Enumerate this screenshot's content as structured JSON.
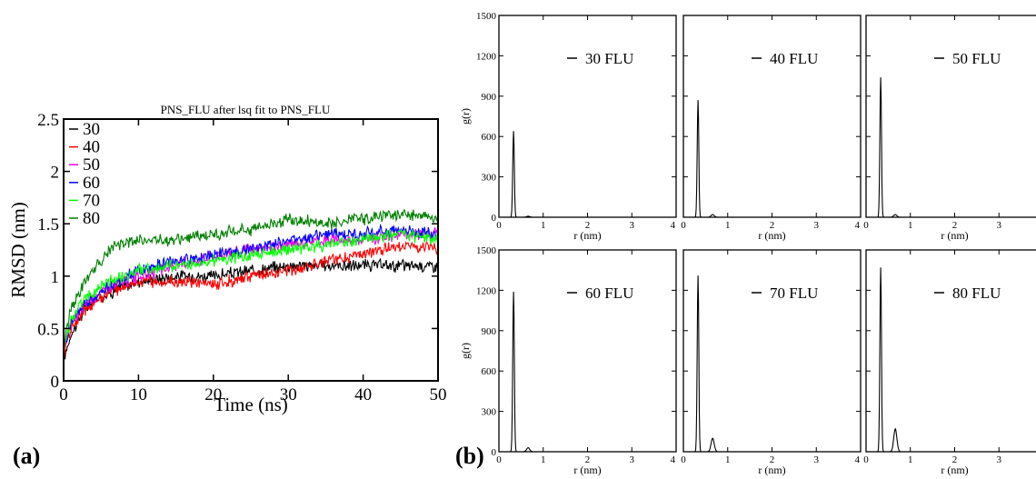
{
  "panel_labels": {
    "a": "(a)",
    "b": "(b)"
  },
  "colors": {
    "axis": "#000000",
    "frame": "#000000",
    "background": "#ffffff"
  },
  "chart_data": [
    {
      "type": "line",
      "title": "PNS_FLU after lsq fit to PNS_FLU",
      "xlabel": "Time (ns)",
      "ylabel": "RMSD (nm)",
      "xlim": [
        0,
        50
      ],
      "ylim": [
        0,
        2.5
      ],
      "xticks": [
        0,
        10,
        20,
        30,
        40,
        50
      ],
      "yticks": [
        0,
        0.5,
        1,
        1.5,
        2,
        2.5
      ],
      "xtick_labels": [
        "0",
        "10",
        "20",
        "30",
        "40",
        "50"
      ],
      "ytick_labels": [
        "0",
        "0.5",
        "1",
        "1.5",
        "2",
        "2.5"
      ],
      "legend_position": "top-left",
      "grid": false,
      "series": [
        {
          "name": "30",
          "color": "#000000",
          "points": [
            [
              0,
              0.2
            ],
            [
              1,
              0.45
            ],
            [
              3,
              0.7
            ],
            [
              5,
              0.8
            ],
            [
              8,
              0.9
            ],
            [
              10,
              0.95
            ],
            [
              15,
              1.0
            ],
            [
              20,
              1.0
            ],
            [
              25,
              1.05
            ],
            [
              30,
              1.1
            ],
            [
              35,
              1.1
            ],
            [
              40,
              1.1
            ],
            [
              45,
              1.1
            ],
            [
              50,
              1.1
            ]
          ]
        },
        {
          "name": "40",
          "color": "#ff0000",
          "points": [
            [
              0,
              0.25
            ],
            [
              1,
              0.5
            ],
            [
              3,
              0.7
            ],
            [
              6,
              0.85
            ],
            [
              10,
              0.95
            ],
            [
              15,
              0.95
            ],
            [
              20,
              0.92
            ],
            [
              25,
              1.0
            ],
            [
              30,
              1.05
            ],
            [
              35,
              1.15
            ],
            [
              40,
              1.2
            ],
            [
              45,
              1.3
            ],
            [
              50,
              1.25
            ]
          ]
        },
        {
          "name": "50",
          "color": "#ee00ee",
          "points": [
            [
              0,
              0.3
            ],
            [
              1,
              0.55
            ],
            [
              3,
              0.75
            ],
            [
              6,
              0.9
            ],
            [
              10,
              1.0
            ],
            [
              15,
              1.1
            ],
            [
              20,
              1.2
            ],
            [
              25,
              1.25
            ],
            [
              30,
              1.3
            ],
            [
              35,
              1.35
            ],
            [
              40,
              1.35
            ],
            [
              45,
              1.4
            ],
            [
              50,
              1.4
            ]
          ]
        },
        {
          "name": "60",
          "color": "#0000ff",
          "points": [
            [
              0,
              0.3
            ],
            [
              1,
              0.55
            ],
            [
              3,
              0.75
            ],
            [
              6,
              0.9
            ],
            [
              10,
              1.05
            ],
            [
              15,
              1.15
            ],
            [
              20,
              1.2
            ],
            [
              25,
              1.25
            ],
            [
              30,
              1.35
            ],
            [
              35,
              1.4
            ],
            [
              40,
              1.4
            ],
            [
              45,
              1.45
            ],
            [
              50,
              1.4
            ]
          ]
        },
        {
          "name": "70",
          "color": "#00ff00",
          "points": [
            [
              0,
              0.3
            ],
            [
              1,
              0.6
            ],
            [
              3,
              0.8
            ],
            [
              6,
              0.95
            ],
            [
              10,
              1.05
            ],
            [
              15,
              1.1
            ],
            [
              20,
              1.15
            ],
            [
              25,
              1.2
            ],
            [
              30,
              1.25
            ],
            [
              35,
              1.3
            ],
            [
              40,
              1.35
            ],
            [
              45,
              1.4
            ],
            [
              50,
              1.35
            ]
          ]
        },
        {
          "name": "80",
          "color": "#008000",
          "points": [
            [
              0,
              0.35
            ],
            [
              1,
              0.7
            ],
            [
              3,
              0.95
            ],
            [
              5,
              1.15
            ],
            [
              7,
              1.3
            ],
            [
              10,
              1.35
            ],
            [
              15,
              1.35
            ],
            [
              20,
              1.4
            ],
            [
              25,
              1.45
            ],
            [
              30,
              1.55
            ],
            [
              35,
              1.5
            ],
            [
              40,
              1.55
            ],
            [
              45,
              1.6
            ],
            [
              50,
              1.55
            ]
          ]
        }
      ]
    },
    {
      "type": "line",
      "ylabel": "g(r)",
      "xlabel": "r (nm)",
      "xlim": [
        0,
        4
      ],
      "ylim": [
        0,
        1500
      ],
      "xticks": [
        0,
        1,
        2,
        3,
        4
      ],
      "yticks": [
        0,
        300,
        600,
        900,
        1200,
        1500
      ],
      "series": [
        {
          "name": "30 FLU",
          "peaks": [
            [
              0.33,
              640,
              0.025
            ],
            [
              0.66,
              8,
              0.05
            ]
          ]
        }
      ]
    },
    {
      "type": "line",
      "xlabel": "r (nm)",
      "xlim": [
        0,
        4
      ],
      "ylim": [
        0,
        1500
      ],
      "xticks": [
        0,
        1,
        2,
        3,
        4
      ],
      "yticks": [
        0,
        300,
        600,
        900,
        1200,
        1500
      ],
      "series": [
        {
          "name": "40 FLU",
          "peaks": [
            [
              0.33,
              870,
              0.025
            ],
            [
              0.66,
              20,
              0.05
            ]
          ]
        }
      ]
    },
    {
      "type": "line",
      "xlabel": "r (nm)",
      "xlim": [
        0,
        4
      ],
      "ylim": [
        0,
        1500
      ],
      "xticks": [
        0,
        1,
        2,
        3,
        4
      ],
      "yticks": [
        0,
        300,
        600,
        900,
        1200,
        1500
      ],
      "series": [
        {
          "name": "50 FLU",
          "peaks": [
            [
              0.33,
              1040,
              0.025
            ],
            [
              0.66,
              20,
              0.05
            ]
          ]
        }
      ]
    },
    {
      "type": "line",
      "ylabel": "g(r)",
      "xlabel": "r (nm)",
      "xlim": [
        0,
        4
      ],
      "ylim": [
        0,
        1500
      ],
      "xticks": [
        0,
        1,
        2,
        3,
        4
      ],
      "yticks": [
        0,
        300,
        600,
        900,
        1200,
        1500
      ],
      "series": [
        {
          "name": "60 FLU",
          "peaks": [
            [
              0.33,
              1190,
              0.025
            ],
            [
              0.66,
              30,
              0.05
            ]
          ]
        }
      ]
    },
    {
      "type": "line",
      "xlabel": "r (nm)",
      "xlim": [
        0,
        4
      ],
      "ylim": [
        0,
        1500
      ],
      "xticks": [
        0,
        1,
        2,
        3,
        4
      ],
      "yticks": [
        0,
        300,
        600,
        900,
        1200,
        1500
      ],
      "series": [
        {
          "name": "70 FLU",
          "peaks": [
            [
              0.33,
              1310,
              0.025
            ],
            [
              0.66,
              100,
              0.05
            ]
          ]
        }
      ]
    },
    {
      "type": "line",
      "xlabel": "r (nm)",
      "xlim": [
        0,
        4
      ],
      "ylim": [
        0,
        1500
      ],
      "xticks": [
        0,
        1,
        2,
        3,
        4
      ],
      "yticks": [
        0,
        300,
        600,
        900,
        1200,
        1500
      ],
      "series": [
        {
          "name": "80 FLU",
          "peaks": [
            [
              0.33,
              1370,
              0.025
            ],
            [
              0.66,
              170,
              0.05
            ]
          ]
        }
      ]
    }
  ]
}
